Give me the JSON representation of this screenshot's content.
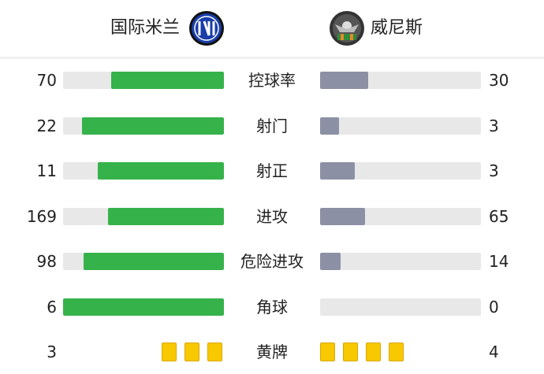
{
  "home": {
    "name": "国际米兰",
    "logo": "inter-milan-logo"
  },
  "away": {
    "name": "威尼斯",
    "logo": "venezia-logo"
  },
  "colors": {
    "home_bar": "#36b24a",
    "away_bar": "#8b90a5",
    "track": "#e8e8e8",
    "yellow_card": "#f8c800"
  },
  "stats": [
    {
      "label": "控球率",
      "home": 70,
      "away": 30
    },
    {
      "label": "射门",
      "home": 22,
      "away": 3
    },
    {
      "label": "射正",
      "home": 11,
      "away": 3
    },
    {
      "label": "进攻",
      "home": 169,
      "away": 65
    },
    {
      "label": "危险进攻",
      "home": 98,
      "away": 14
    },
    {
      "label": "角球",
      "home": 6,
      "away": 0
    }
  ],
  "yellow_cards": {
    "label": "黄牌",
    "home": 3,
    "away": 4
  }
}
